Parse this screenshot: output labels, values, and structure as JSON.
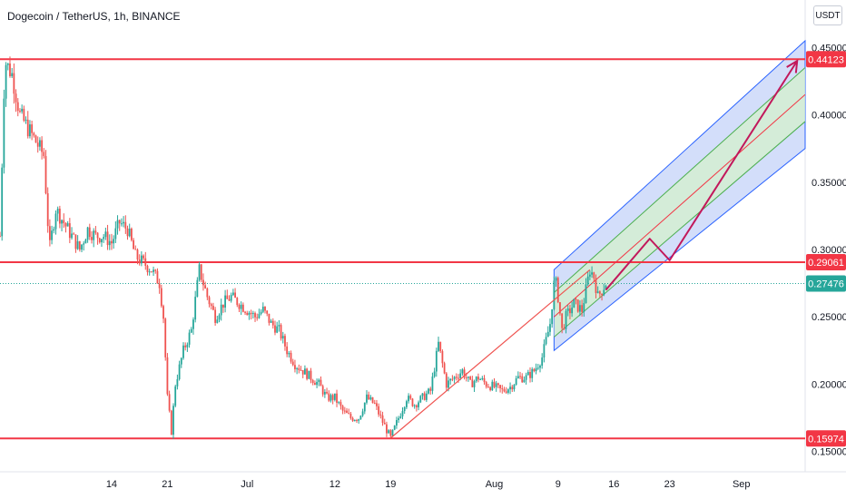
{
  "header": {
    "title": "Dogecoin / TetherUS, 1h, BINANCE",
    "currency_button": "USDT"
  },
  "colors": {
    "candle_up": "#26a69a",
    "candle_down": "#ef5350",
    "level_line": "#f23645",
    "current_price": "#26a69a",
    "channel_fill": "#aec3f5",
    "channel_inner_fill": "#d4efd0",
    "channel_edge": "#2962ff",
    "arrow": "#c2185b"
  },
  "chart_data": {
    "type": "candlestick",
    "symbol": "Dogecoin / TetherUS",
    "interval": "1h",
    "exchange": "BINANCE",
    "y_axis": {
      "ticks": [
        "0.45000",
        "0.40000",
        "0.35000",
        "0.30000",
        "0.25000",
        "0.20000",
        "0.15000"
      ],
      "tick_values": [
        0.45,
        0.4,
        0.35,
        0.3,
        0.25,
        0.2,
        0.15
      ],
      "range": [
        0.135,
        0.465
      ]
    },
    "x_axis": {
      "ticks": [
        "14",
        "21",
        "Jul",
        "12",
        "19",
        "Aug",
        "9",
        "16",
        "23",
        "Sep"
      ],
      "tick_days": [
        14,
        21,
        31,
        42,
        49,
        62,
        70,
        77,
        84,
        93
      ],
      "range_days": [
        0,
        101
      ]
    },
    "price_path": [
      [
        0,
        0.31
      ],
      [
        0.6,
        0.44
      ],
      [
        1.5,
        0.43
      ],
      [
        2.5,
        0.4
      ],
      [
        3.5,
        0.39
      ],
      [
        4.5,
        0.38
      ],
      [
        5.5,
        0.37
      ],
      [
        6.2,
        0.3
      ],
      [
        7,
        0.33
      ],
      [
        8,
        0.32
      ],
      [
        9,
        0.31
      ],
      [
        10,
        0.3
      ],
      [
        11,
        0.315
      ],
      [
        12,
        0.31
      ],
      [
        13,
        0.31
      ],
      [
        14,
        0.305
      ],
      [
        15,
        0.32
      ],
      [
        16,
        0.315
      ],
      [
        17,
        0.295
      ],
      [
        18,
        0.29
      ],
      [
        19,
        0.285
      ],
      [
        20,
        0.275
      ],
      [
        20.5,
        0.25
      ],
      [
        21,
        0.19
      ],
      [
        21.5,
        0.165
      ],
      [
        22,
        0.2
      ],
      [
        23,
        0.225
      ],
      [
        24,
        0.24
      ],
      [
        25,
        0.285
      ],
      [
        26,
        0.265
      ],
      [
        27,
        0.25
      ],
      [
        28,
        0.26
      ],
      [
        29,
        0.265
      ],
      [
        30,
        0.26
      ],
      [
        31,
        0.255
      ],
      [
        32,
        0.25
      ],
      [
        33,
        0.255
      ],
      [
        34,
        0.245
      ],
      [
        35,
        0.24
      ],
      [
        36,
        0.225
      ],
      [
        37,
        0.215
      ],
      [
        38,
        0.21
      ],
      [
        39,
        0.205
      ],
      [
        40,
        0.2
      ],
      [
        41,
        0.19
      ],
      [
        42,
        0.19
      ],
      [
        43,
        0.18
      ],
      [
        44,
        0.175
      ],
      [
        45,
        0.175
      ],
      [
        46,
        0.19
      ],
      [
        47,
        0.185
      ],
      [
        48,
        0.172
      ],
      [
        49,
        0.16
      ],
      [
        50,
        0.175
      ],
      [
        51,
        0.19
      ],
      [
        52,
        0.185
      ],
      [
        53,
        0.19
      ],
      [
        54,
        0.195
      ],
      [
        55,
        0.23
      ],
      [
        56,
        0.2
      ],
      [
        57,
        0.205
      ],
      [
        58,
        0.21
      ],
      [
        59,
        0.2
      ],
      [
        60,
        0.205
      ],
      [
        61,
        0.2
      ],
      [
        62,
        0.198
      ],
      [
        63,
        0.195
      ],
      [
        64,
        0.198
      ],
      [
        65,
        0.205
      ],
      [
        66,
        0.205
      ],
      [
        67,
        0.21
      ],
      [
        68,
        0.22
      ],
      [
        69,
        0.245
      ],
      [
        69.6,
        0.28
      ],
      [
        70,
        0.265
      ],
      [
        70.5,
        0.24
      ],
      [
        71,
        0.25
      ],
      [
        72,
        0.26
      ],
      [
        73,
        0.255
      ],
      [
        74,
        0.285
      ],
      [
        74.5,
        0.28
      ],
      [
        75,
        0.265
      ],
      [
        75.5,
        0.27
      ],
      [
        76,
        0.275
      ]
    ],
    "levels": [
      {
        "value": 0.44123,
        "label": "0.44123"
      },
      {
        "value": 0.29061,
        "label": "0.29061"
      },
      {
        "value": 0.15974,
        "label": "0.15974"
      }
    ],
    "current_price": {
      "value": 0.27476,
      "label": "0.27476"
    },
    "trend_line": {
      "start": [
        49,
        0.16
      ],
      "end": [
        74,
        0.285
      ]
    },
    "channel": {
      "start_day": 69.5,
      "end_day": 101,
      "upper": [
        0.285,
        0.455
      ],
      "inner_upper": [
        0.268,
        0.435
      ],
      "mid": [
        0.25,
        0.415
      ],
      "inner_lower": [
        0.235,
        0.395
      ],
      "lower": [
        0.225,
        0.375
      ]
    },
    "projection_path": [
      [
        76,
        0.27
      ],
      [
        81.5,
        0.308
      ],
      [
        84,
        0.292
      ],
      [
        100,
        0.44
      ]
    ]
  }
}
